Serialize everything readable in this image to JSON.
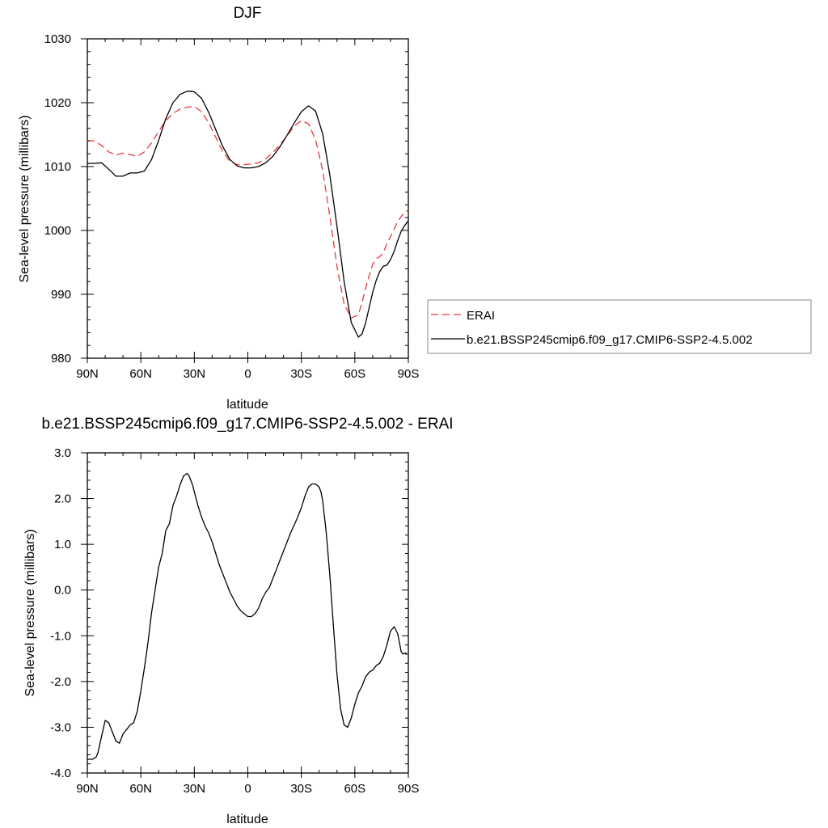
{
  "chart_data": [
    {
      "type": "line",
      "title": "DJF",
      "xlabel": "latitude",
      "ylabel": "Sea-level pressure (millibars)",
      "xlim": [
        90,
        -90
      ],
      "ylim": [
        980,
        1030
      ],
      "x_ticks": [
        90,
        60,
        30,
        0,
        -30,
        -60,
        -90
      ],
      "x_tick_labels": [
        "90N",
        "60N",
        "30N",
        "0",
        "30S",
        "60S",
        "90S"
      ],
      "y_ticks": [
        980,
        990,
        1000,
        1010,
        1020,
        1030
      ],
      "y_tick_labels": [
        "980",
        "990",
        "1000",
        "1010",
        "1020",
        "1030"
      ],
      "legend_placement": "right",
      "series": [
        {
          "name": "ERAI",
          "color": "#e8383d",
          "dash": "dashed",
          "x": [
            90,
            86,
            82,
            78,
            74,
            70,
            66,
            62,
            58,
            54,
            50,
            46,
            42,
            38,
            34,
            30,
            26,
            22,
            18,
            14,
            10,
            6,
            2,
            -2,
            -6,
            -10,
            -14,
            -18,
            -22,
            -26,
            -30,
            -34,
            -38,
            -42,
            -46,
            -50,
            -54,
            -58,
            -62,
            -64,
            -66,
            -68,
            -70,
            -72,
            -74,
            -76,
            -78,
            -80,
            -82,
            -84,
            -86,
            -88,
            -90
          ],
          "y": [
            1014.1,
            1014.0,
            1013.3,
            1012.3,
            1011.8,
            1012.1,
            1011.9,
            1011.6,
            1012.3,
            1013.7,
            1015.5,
            1017.2,
            1018.3,
            1019.0,
            1019.3,
            1019.4,
            1018.6,
            1016.9,
            1014.6,
            1012.3,
            1010.8,
            1010.3,
            1010.3,
            1010.4,
            1010.6,
            1011.2,
            1012.2,
            1013.4,
            1014.8,
            1016.3,
            1017.2,
            1016.7,
            1014.2,
            1009.4,
            1002.1,
            994.3,
            988.5,
            986.3,
            986.8,
            988.7,
            990.9,
            992.9,
            994.7,
            995.6,
            995.9,
            996.6,
            997.9,
            999.0,
            1000.2,
            1001.4,
            1002.2,
            1002.8,
            1003.2
          ]
        },
        {
          "name": "b.e21.BSSP245cmip6.f09_g17.CMIP6-SSP2-4.5.002",
          "color": "#000000",
          "dash": "solid",
          "x": [
            90,
            86,
            82,
            78,
            74,
            70,
            66,
            62,
            58,
            54,
            50,
            46,
            42,
            38,
            34,
            32,
            30,
            26,
            22,
            18,
            14,
            10,
            6,
            2,
            -2,
            -6,
            -10,
            -14,
            -18,
            -22,
            -26,
            -30,
            -34,
            -38,
            -42,
            -46,
            -50,
            -54,
            -58,
            -62,
            -64,
            -66,
            -68,
            -70,
            -72,
            -74,
            -76,
            -78,
            -80,
            -82,
            -84,
            -86,
            -88,
            -90
          ],
          "y": [
            1010.5,
            1010.5,
            1010.6,
            1009.6,
            1008.5,
            1008.5,
            1009.0,
            1009.0,
            1009.3,
            1011.1,
            1014.1,
            1017.5,
            1020.0,
            1021.3,
            1021.8,
            1021.8,
            1021.7,
            1020.7,
            1018.5,
            1015.8,
            1013.1,
            1011.1,
            1010.1,
            1009.8,
            1009.8,
            1010.0,
            1010.6,
            1011.6,
            1013.1,
            1014.9,
            1016.8,
            1018.6,
            1019.5,
            1018.7,
            1015.1,
            1008.6,
            1000.6,
            992.0,
            985.6,
            983.3,
            983.8,
            985.5,
            987.9,
            990.3,
            992.2,
            993.6,
            994.4,
            994.6,
            995.4,
            996.7,
            998.4,
            999.9,
            1000.8,
            1001.5
          ]
        }
      ]
    },
    {
      "type": "line",
      "title": "b.e21.BSSP245cmip6.f09_g17.CMIP6-SSP2-4.5.002 - ERAI",
      "xlabel": "latitude",
      "ylabel": "Sea-level pressure (millibars)",
      "xlim": [
        90,
        -90
      ],
      "ylim": [
        -4.0,
        3.0
      ],
      "x_ticks": [
        90,
        60,
        30,
        0,
        -30,
        -60,
        -90
      ],
      "x_tick_labels": [
        "90N",
        "60N",
        "30N",
        "0",
        "30S",
        "60S",
        "90S"
      ],
      "y_ticks": [
        -4.0,
        -3.0,
        -2.0,
        -1.0,
        0.0,
        1.0,
        2.0,
        3.0
      ],
      "y_tick_labels": [
        "-4.0",
        "-3.0",
        "-2.0",
        "-1.0",
        "0.0",
        "1.0",
        "2.0",
        "3.0"
      ],
      "series": [
        {
          "color": "#000000",
          "dash": "solid",
          "x": [
            90,
            87,
            85,
            84,
            82,
            80,
            78,
            76,
            74,
            72,
            70,
            68,
            66,
            64,
            62,
            60,
            58,
            56,
            54,
            52,
            50,
            48,
            46,
            44,
            42,
            40,
            38,
            36,
            34,
            33,
            32,
            31,
            30,
            28,
            26,
            24,
            22,
            20,
            18,
            16,
            14,
            12,
            10,
            8,
            6,
            4,
            2,
            0,
            -2,
            -4,
            -6,
            -8,
            -10,
            -12,
            -14,
            -16,
            -18,
            -20,
            -22,
            -24,
            -26,
            -28,
            -30,
            -32,
            -34,
            -36,
            -38,
            -40,
            -41,
            -42,
            -44,
            -46,
            -48,
            -50,
            -52,
            -54,
            -56,
            -58,
            -60,
            -62,
            -64,
            -66,
            -68,
            -70,
            -72,
            -74,
            -76,
            -78,
            -80,
            -82,
            -84,
            -85,
            -86,
            -87,
            -88,
            -89
          ],
          "y": [
            -3.7,
            -3.7,
            -3.65,
            -3.55,
            -3.2,
            -2.85,
            -2.9,
            -3.1,
            -3.3,
            -3.35,
            -3.15,
            -3.05,
            -2.95,
            -2.9,
            -2.65,
            -2.2,
            -1.7,
            -1.15,
            -0.5,
            0.0,
            0.5,
            0.8,
            1.3,
            1.45,
            1.85,
            2.05,
            2.3,
            2.5,
            2.55,
            2.5,
            2.4,
            2.3,
            2.15,
            1.85,
            1.6,
            1.4,
            1.25,
            1.05,
            0.8,
            0.55,
            0.35,
            0.15,
            -0.05,
            -0.2,
            -0.35,
            -0.45,
            -0.52,
            -0.58,
            -0.58,
            -0.52,
            -0.4,
            -0.2,
            -0.05,
            0.05,
            0.25,
            0.45,
            0.65,
            0.85,
            1.05,
            1.25,
            1.42,
            1.6,
            1.8,
            2.05,
            2.25,
            2.32,
            2.32,
            2.25,
            2.15,
            1.95,
            1.25,
            0.3,
            -0.8,
            -1.85,
            -2.6,
            -2.95,
            -3.0,
            -2.8,
            -2.5,
            -2.25,
            -2.1,
            -1.9,
            -1.8,
            -1.75,
            -1.65,
            -1.6,
            -1.45,
            -1.2,
            -0.9,
            -0.8,
            -0.95,
            -1.15,
            -1.35,
            -1.4,
            -1.38,
            -1.38
          ]
        }
      ]
    }
  ]
}
